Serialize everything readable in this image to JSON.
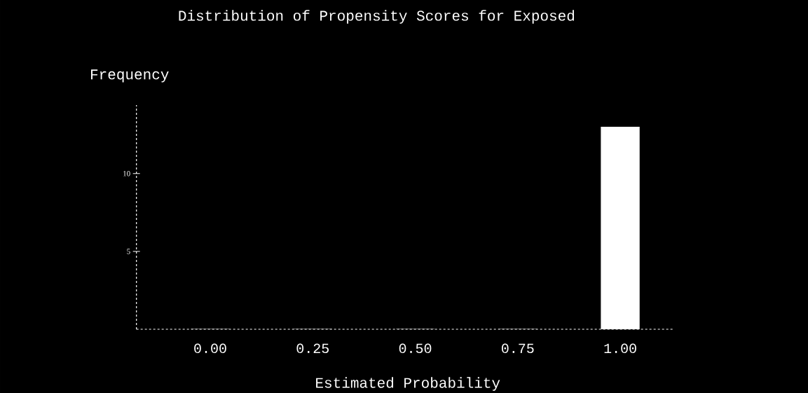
{
  "chart_data": {
    "type": "bar",
    "title": "Distribution of Propensity Scores for Exposed",
    "xlabel": "Estimated Probability",
    "ylabel": "Frequency",
    "categories": [
      "0.00",
      "0.25",
      "0.50",
      "0.75",
      "1.00"
    ],
    "values": [
      0,
      0,
      0,
      0,
      13
    ],
    "color": "#ffffff",
    "ylim": [
      0,
      14.4
    ],
    "yticks": [
      5,
      10
    ]
  }
}
